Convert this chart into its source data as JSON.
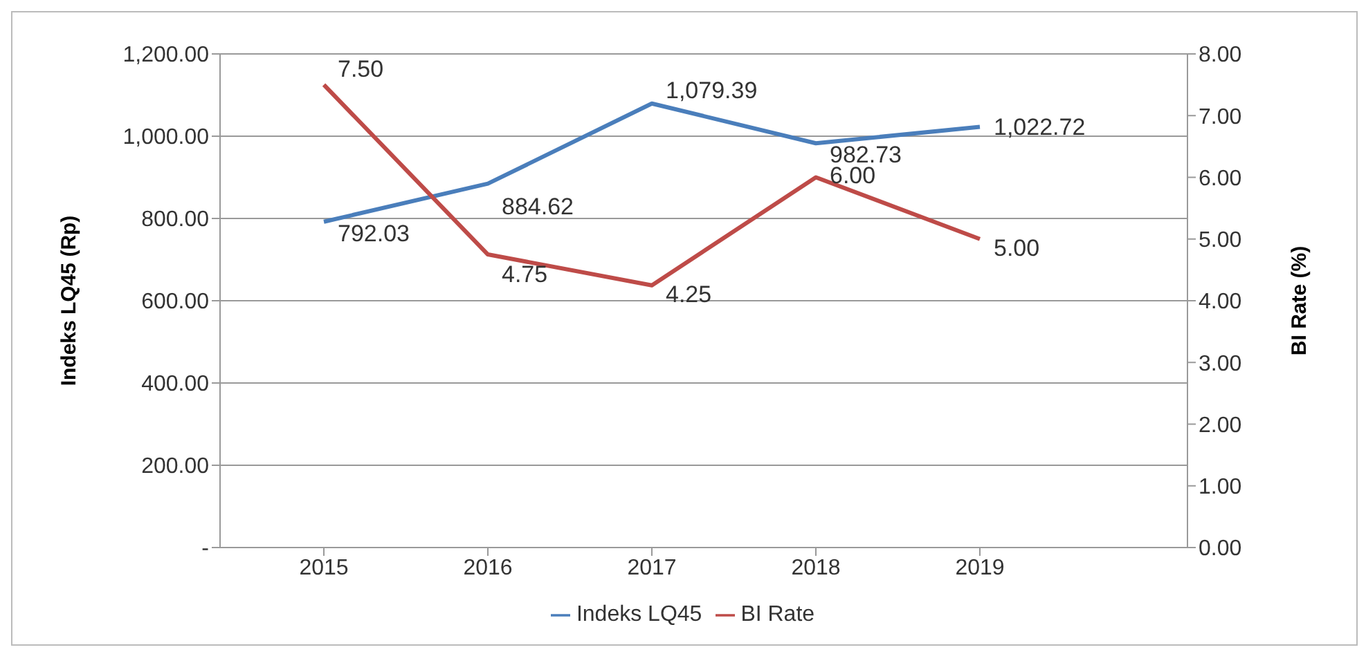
{
  "chart_data": {
    "type": "line",
    "categories": [
      "2015",
      "2016",
      "2017",
      "2018",
      "2019"
    ],
    "ylabel": "Indeks LQ45 (Rp)",
    "y2label": "BI Rate (%)",
    "series": [
      {
        "name": "Indeks LQ45",
        "color": "#4a7ebb",
        "values": [
          792.03,
          884.62,
          1079.39,
          982.73,
          1022.72
        ],
        "value_labels": [
          "792.03",
          "884.62",
          "1,079.39",
          "982.73",
          "1,022.72"
        ]
      },
      {
        "name": "BI Rate",
        "color": "#be4b48",
        "axis": "y2",
        "values": [
          7.5,
          4.75,
          4.25,
          6.0,
          5.0
        ],
        "value_labels": [
          "7.50",
          "4.75",
          "4.25",
          "6.00",
          "5.00"
        ]
      }
    ],
    "ylim": [
      0,
      1200
    ],
    "yticks": [
      {
        "value": 0,
        "label": "-"
      },
      {
        "value": 200,
        "label": "200.00"
      },
      {
        "value": 400,
        "label": "400.00"
      },
      {
        "value": 600,
        "label": "600.00"
      },
      {
        "value": 800,
        "label": "800.00"
      },
      {
        "value": 1000,
        "label": "1,000.00"
      },
      {
        "value": 1200,
        "label": "1,200.00"
      }
    ],
    "y2lim": [
      0,
      8
    ],
    "y2ticks": [
      {
        "value": 0,
        "label": "0.00"
      },
      {
        "value": 1,
        "label": "1.00"
      },
      {
        "value": 2,
        "label": "2.00"
      },
      {
        "value": 3,
        "label": "3.00"
      },
      {
        "value": 4,
        "label": "4.00"
      },
      {
        "value": 5,
        "label": "5.00"
      },
      {
        "value": 6,
        "label": "6.00"
      },
      {
        "value": 7,
        "label": "7.00"
      },
      {
        "value": 8,
        "label": "8.00"
      }
    ],
    "grid": "y",
    "legend": "bottom",
    "marker": "none",
    "line_style": "solid"
  }
}
